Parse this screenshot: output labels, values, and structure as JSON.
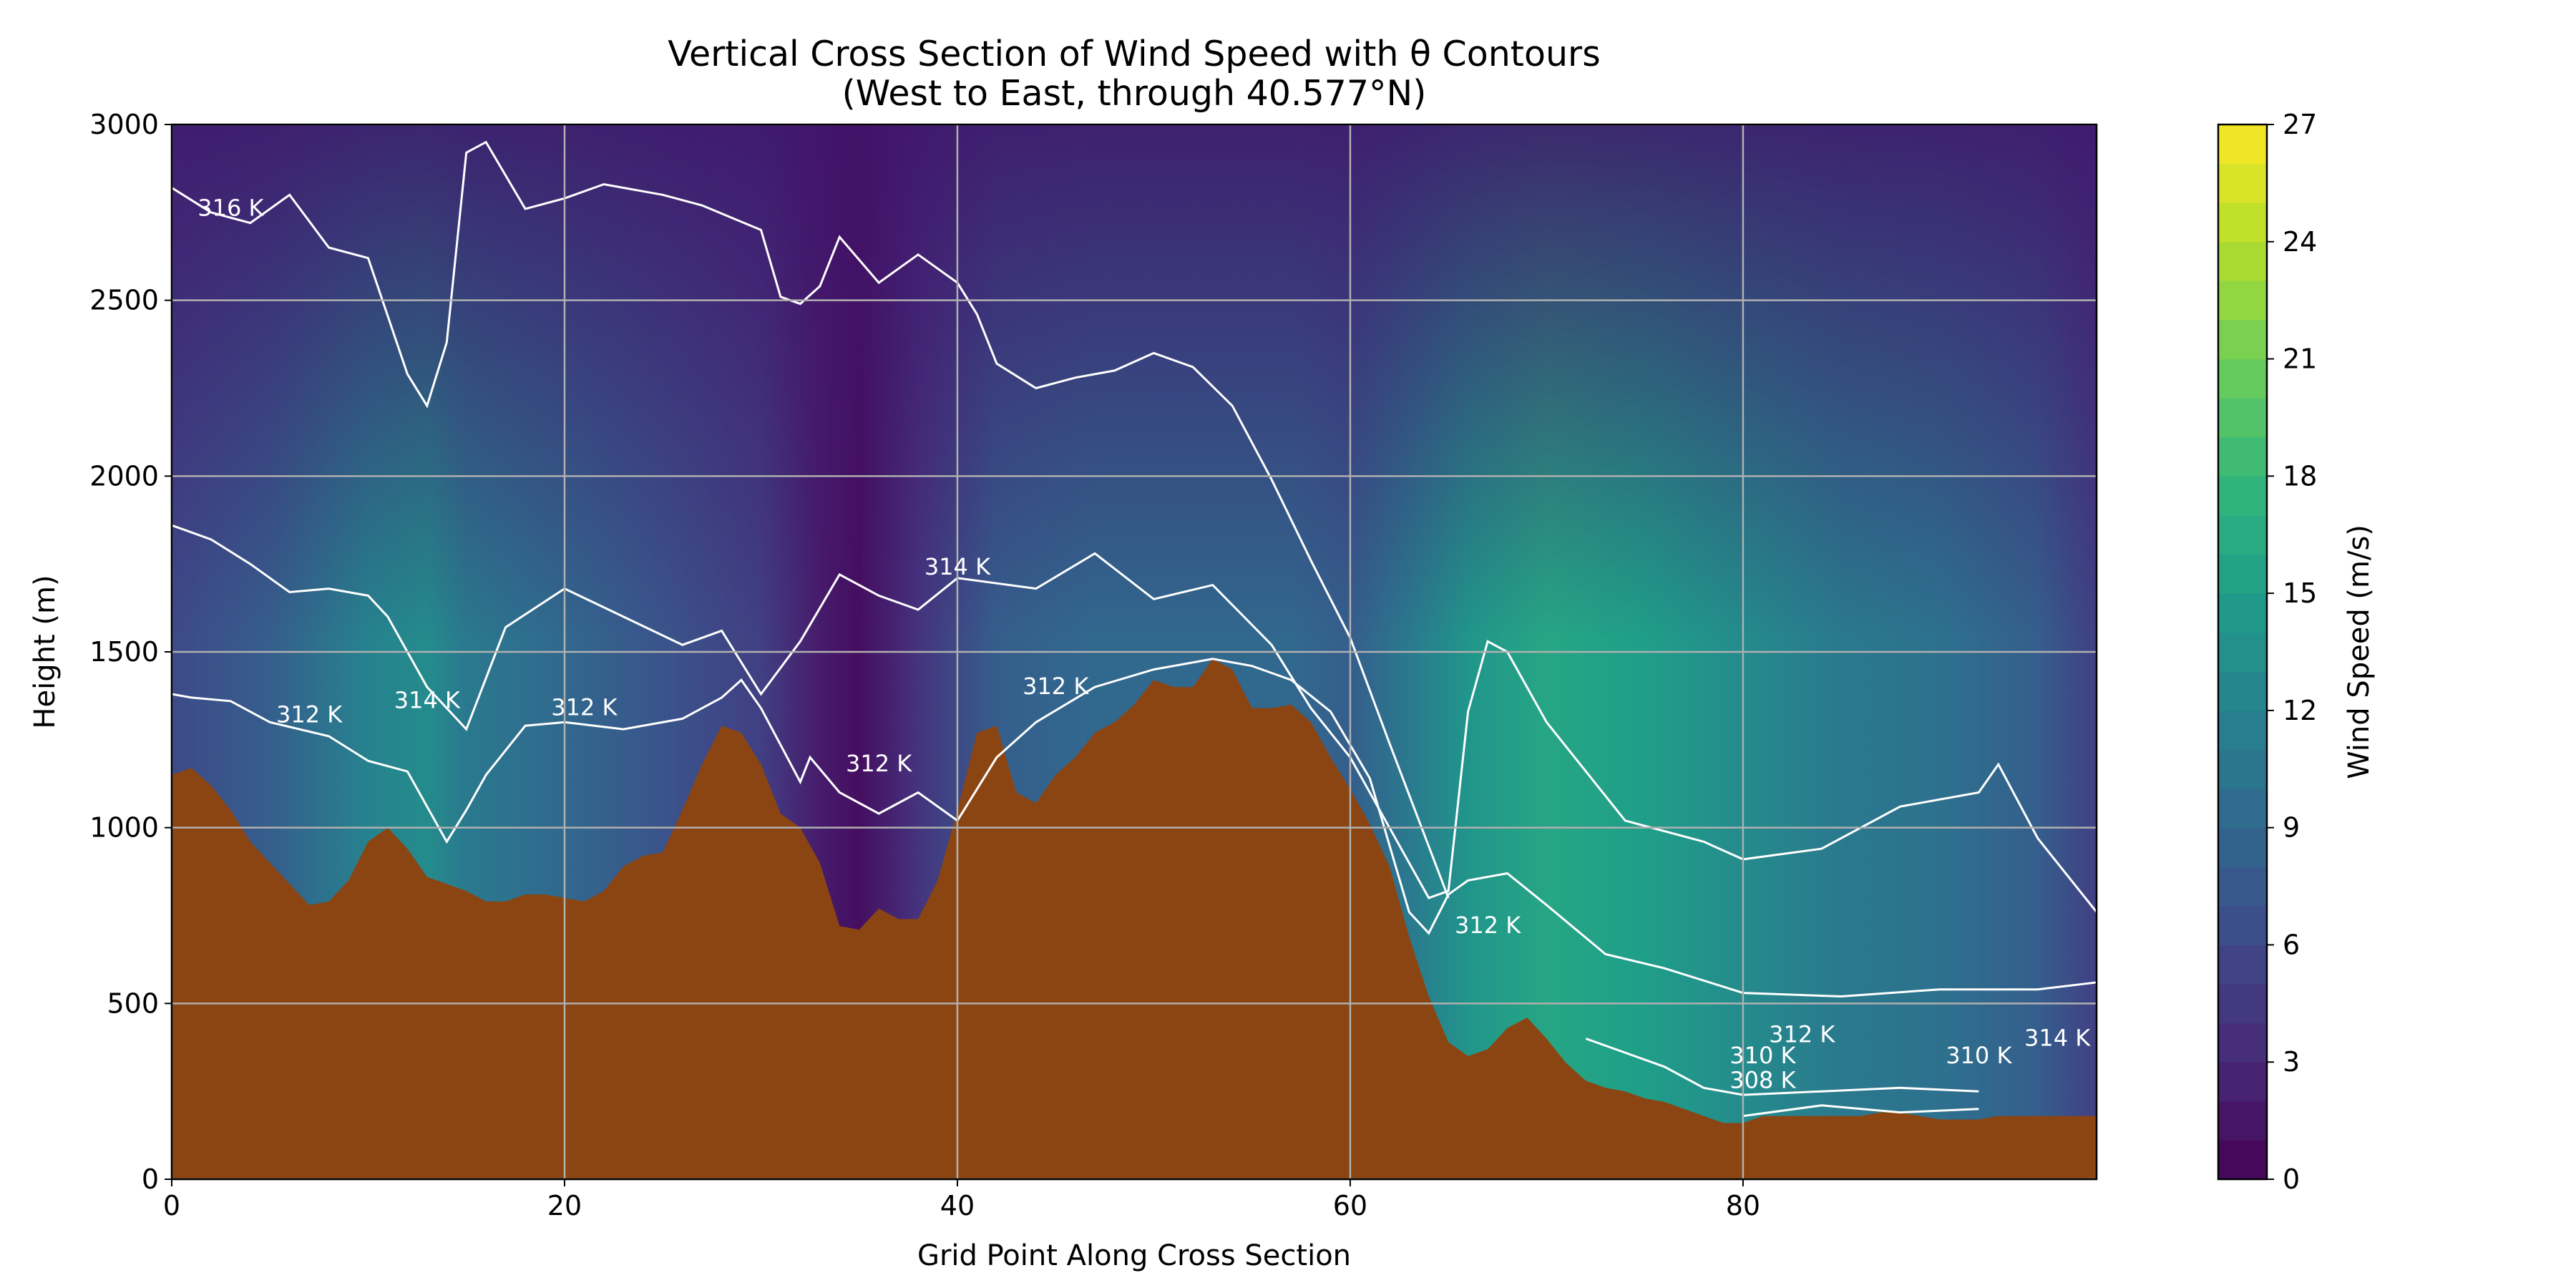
{
  "chart_data": {
    "type": "heatmap",
    "title": "Vertical Cross Section of Wind Speed with θ Contours",
    "subtitle": "(West to East, through 40.577°N)",
    "xlabel": "Grid Point Along Cross Section",
    "ylabel": "Height (m)",
    "colorbar_label": "Wind Speed (m/s)",
    "xlim": [
      0,
      98
    ],
    "ylim": [
      0,
      3000
    ],
    "x_ticks": [
      0,
      20,
      40,
      60,
      80
    ],
    "y_ticks": [
      0,
      500,
      1000,
      1500,
      2000,
      2500,
      3000
    ],
    "colorbar_range": [
      0,
      27
    ],
    "colorbar_ticks": [
      0,
      3,
      6,
      9,
      12,
      15,
      18,
      21,
      24,
      27
    ],
    "colormap": "viridis",
    "grid": true,
    "terrain_color": "#8B4513",
    "wind_field": {
      "x": [
        0,
        5,
        10,
        13,
        15,
        20,
        25,
        30,
        33,
        35,
        38,
        42,
        47,
        52,
        57,
        60,
        63,
        66,
        70,
        75,
        80,
        85,
        90,
        95,
        98
      ],
      "speed_low": [
        6,
        8,
        12,
        13,
        11,
        9,
        7,
        5,
        2,
        1,
        4,
        8,
        9,
        9,
        9,
        8,
        11,
        14,
        16,
        15,
        13,
        11,
        10,
        8,
        5
      ],
      "speed_mid": [
        6,
        6,
        6,
        5,
        5,
        5,
        5,
        4,
        3,
        2,
        3,
        5,
        6,
        7,
        7,
        6,
        5,
        5,
        4,
        3,
        2,
        2,
        3,
        3,
        3
      ],
      "speed_high": [
        4,
        4,
        3,
        1,
        2,
        3,
        4,
        3,
        3,
        3,
        3,
        4,
        4,
        3,
        2,
        3,
        2,
        2,
        2,
        1,
        0.5,
        1,
        2,
        2,
        3
      ]
    },
    "terrain": {
      "x": [
        0,
        1,
        2,
        3,
        4,
        5,
        6,
        7,
        8,
        9,
        10,
        11,
        12,
        13,
        14,
        15,
        16,
        17,
        18,
        19,
        20,
        21,
        22,
        23,
        24,
        25,
        26,
        27,
        28,
        29,
        30,
        31,
        32,
        33,
        34,
        35,
        36,
        37,
        38,
        39,
        40,
        41,
        42,
        43,
        44,
        45,
        46,
        47,
        48,
        49,
        50,
        51,
        52,
        53,
        54,
        55,
        56,
        57,
        58,
        59,
        60,
        61,
        62,
        63,
        64,
        65,
        66,
        67,
        68,
        69,
        70,
        71,
        72,
        73,
        74,
        75,
        76,
        77,
        78,
        79,
        80,
        81,
        82,
        83,
        84,
        85,
        86,
        87,
        88,
        89,
        90,
        91,
        92,
        93,
        94,
        95,
        96,
        97,
        98
      ],
      "height": [
        1150,
        1170,
        1120,
        1050,
        960,
        900,
        840,
        780,
        790,
        850,
        960,
        1000,
        940,
        860,
        840,
        820,
        790,
        790,
        810,
        810,
        800,
        790,
        820,
        890,
        920,
        930,
        1050,
        1180,
        1290,
        1270,
        1180,
        1040,
        1000,
        900,
        720,
        710,
        770,
        740,
        740,
        850,
        1050,
        1270,
        1290,
        1100,
        1070,
        1150,
        1200,
        1270,
        1300,
        1350,
        1420,
        1400,
        1400,
        1480,
        1450,
        1340,
        1340,
        1350,
        1300,
        1200,
        1110,
        1010,
        890,
        690,
        520,
        390,
        350,
        370,
        430,
        460,
        400,
        330,
        280,
        260,
        250,
        230,
        220,
        200,
        180,
        160,
        160,
        180,
        180,
        180,
        180,
        180,
        180,
        190,
        190,
        180,
        170,
        170,
        170,
        180,
        180,
        180,
        180,
        180,
        180
      ]
    },
    "theta_contours": [
      {
        "level": 308,
        "label": "308 K",
        "x": [
          80,
          84,
          88,
          92
        ],
        "y": [
          180,
          210,
          190,
          200
        ]
      },
      {
        "level": 310,
        "label": "310 K",
        "x": [
          72,
          76,
          78,
          80,
          84,
          88,
          92
        ],
        "y": [
          400,
          320,
          260,
          240,
          250,
          260,
          250
        ]
      },
      {
        "level": 312,
        "label": "312 K",
        "x": [
          0,
          1,
          3,
          5,
          8,
          10,
          12,
          13,
          14,
          15,
          16,
          18,
          20,
          23,
          26,
          28,
          29,
          30,
          32,
          32.5,
          34,
          36,
          38,
          40,
          42,
          44,
          47,
          50,
          53,
          55,
          57,
          59,
          61,
          62,
          63,
          64,
          65,
          66,
          68,
          70,
          73,
          76,
          80,
          85,
          90,
          95,
          98
        ],
        "y": [
          1380,
          1370,
          1360,
          1300,
          1260,
          1190,
          1160,
          1060,
          960,
          1050,
          1150,
          1290,
          1300,
          1280,
          1310,
          1370,
          1420,
          1340,
          1130,
          1200,
          1100,
          1040,
          1100,
          1020,
          1200,
          1300,
          1400,
          1450,
          1480,
          1460,
          1420,
          1330,
          1140,
          950,
          760,
          700,
          810,
          850,
          870,
          780,
          640,
          600,
          530,
          520,
          540,
          540,
          560
        ]
      },
      {
        "level": 314,
        "label": "314 K",
        "x": [
          0,
          2,
          4,
          6,
          8,
          10,
          11,
          13,
          15,
          17,
          20,
          23,
          26,
          28,
          30,
          32,
          34,
          36,
          38,
          40,
          44,
          47,
          50,
          53,
          56,
          58,
          60,
          62,
          64,
          65,
          66,
          67,
          68,
          70,
          74,
          78,
          80,
          84,
          88,
          92,
          93,
          95,
          98
        ],
        "y": [
          1860,
          1820,
          1750,
          1670,
          1680,
          1660,
          1600,
          1400,
          1280,
          1570,
          1680,
          1600,
          1520,
          1560,
          1380,
          1530,
          1720,
          1660,
          1620,
          1710,
          1680,
          1780,
          1650,
          1690,
          1520,
          1340,
          1200,
          1000,
          800,
          820,
          1330,
          1530,
          1500,
          1300,
          1020,
          960,
          910,
          940,
          1060,
          1100,
          1180,
          970,
          760
        ]
      },
      {
        "level": 316,
        "label": "316 K",
        "x": [
          0,
          2,
          4,
          6,
          8,
          10,
          12,
          13,
          14,
          15,
          16,
          18,
          20,
          22,
          25,
          27,
          30,
          31,
          32,
          33,
          34,
          36,
          38,
          40,
          41,
          42,
          44,
          46,
          48,
          50,
          52,
          54,
          56,
          58,
          60,
          62,
          65
        ],
        "y": [
          2820,
          2750,
          2720,
          2800,
          2650,
          2620,
          2290,
          2200,
          2380,
          2920,
          2950,
          2760,
          2790,
          2830,
          2800,
          2770,
          2700,
          2510,
          2490,
          2540,
          2680,
          2550,
          2630,
          2550,
          2460,
          2320,
          2250,
          2280,
          2300,
          2350,
          2310,
          2200,
          1990,
          1760,
          1540,
          1240,
          800
        ]
      }
    ],
    "contour_labels": [
      {
        "text": "316 K",
        "x": 3,
        "y": 2740
      },
      {
        "text": "314 K",
        "x": 40,
        "y": 1720
      },
      {
        "text": "314 K",
        "x": 13,
        "y": 1340
      },
      {
        "text": "312 K",
        "x": 7,
        "y": 1300
      },
      {
        "text": "312 K",
        "x": 21,
        "y": 1320
      },
      {
        "text": "312 K",
        "x": 45,
        "y": 1380
      },
      {
        "text": "312 K",
        "x": 36,
        "y": 1160
      },
      {
        "text": "312 K",
        "x": 67,
        "y": 700
      },
      {
        "text": "312 K",
        "x": 83,
        "y": 390
      },
      {
        "text": "310 K",
        "x": 81,
        "y": 330
      },
      {
        "text": "310 K",
        "x": 92,
        "y": 330
      },
      {
        "text": "308 K",
        "x": 81,
        "y": 260
      },
      {
        "text": "314 K",
        "x": 96,
        "y": 380
      }
    ]
  }
}
